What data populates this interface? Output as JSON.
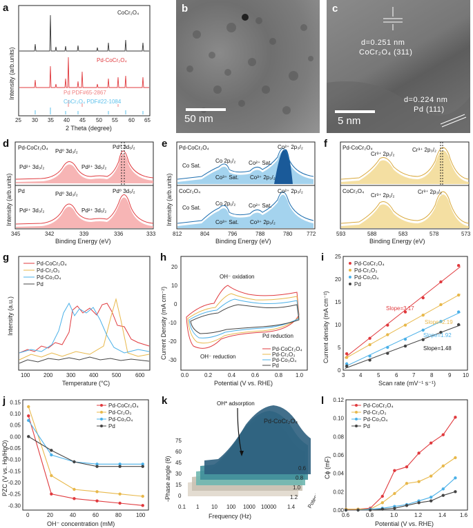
{
  "panels": {
    "a": {
      "label": "a",
      "series": [
        "CoCr₂O₄",
        "Pd-CoCr₂O₄"
      ],
      "refs": [
        "Pd PDF#65-2867",
        "CoCr₂O₄ PDF#22-1084"
      ],
      "xlabel": "2 Theta (degree)",
      "ylabel": "Intensity (arb.units)",
      "xticks": [
        "25",
        "30",
        "35",
        "40",
        "45",
        "50",
        "55",
        "60",
        "65"
      ],
      "colors": [
        "#333333",
        "#e0393d",
        "#f08080",
        "#5bc0eb"
      ]
    },
    "b": {
      "label": "b",
      "scale": "50 nm"
    },
    "c": {
      "label": "c",
      "d1": "d=0.251 nm",
      "plane1": "CoCr₂O₄ (311)",
      "d2": "d=0.224 nm",
      "plane2": "Pd (111)",
      "scale": "5 nm"
    },
    "d": {
      "label": "d",
      "top": "Pd-CoCr₂O₄",
      "bottom": "Pd",
      "peaks": [
        "Pd⁰ 3d₃/₂",
        "Pd²⁺ 3d₃/₂",
        "Pd²⁺ 3d₅/₂",
        "Pd⁰ 3d₅/₂"
      ],
      "xlabel": "Binding Energy (eV)",
      "ylabel": "Intensity (arb.units)",
      "xticks": [
        "345",
        "342",
        "339",
        "336",
        "333"
      ]
    },
    "e": {
      "label": "e",
      "top": "Pd-CoCr₂O₄",
      "bottom": "CoCr₂O₄",
      "peaks": [
        "Co Sat.",
        "Co 2p₁/₂",
        "Co²⁺ Sat.",
        "Co²⁺ 2p₃/₂",
        "Co³⁺ Sat.",
        "Co³⁺ 2p₃/₂"
      ],
      "xlabel": "Binding Energy (eV)",
      "xticks": [
        "812",
        "804",
        "796",
        "788",
        "780",
        "772"
      ]
    },
    "f": {
      "label": "f",
      "top": "Pd-CoCr₂O₄",
      "bottom": "CoCr₂O₄",
      "peaks": [
        "Cr³⁺ 2p₁/₂",
        "Cr³⁺ 2p₃/₂"
      ],
      "xlabel": "Binding Energy (eV)",
      "xticks": [
        "593",
        "588",
        "583",
        "578",
        "573"
      ]
    },
    "g": {
      "label": "g",
      "series": [
        "Pd-CoCr₂O₄",
        "Pd-Cr₂O₃",
        "Pd-Co₃O₄",
        "Pd"
      ],
      "xlabel": "Temperature (°C)",
      "ylabel": "Intensity (a.u.)",
      "xticks": [
        "100",
        "200",
        "300",
        "400",
        "500",
        "600"
      ]
    },
    "h": {
      "label": "h",
      "series": [
        "Pd-CoCr₂O₄",
        "Pd-Cr₂O₃",
        "Pd-Co₃O₄",
        "Pd"
      ],
      "notes": [
        "OH⁻ oxidation",
        "Pd reduction",
        "OH⁻ reduction"
      ],
      "xlabel": "Potential (V vs. RHE)",
      "ylabel": "Current Density (mA cm⁻²)",
      "xticks": [
        "0.0",
        "0.2",
        "0.4",
        "0.6",
        "0.8",
        "1.0"
      ],
      "yticks": [
        "20",
        "10",
        "0",
        "-10",
        "-20",
        "-30"
      ]
    },
    "i": {
      "label": "i",
      "series": [
        "Pd-CoCr₂O₄",
        "Pd-Cr₂O₃",
        "Pd-Co₃O₄",
        "Pd"
      ],
      "slopes": [
        "Slope=3.17",
        "Slope=2.19",
        "Slope=1.92",
        "Slope=1.48"
      ],
      "xlabel": "Scan rate (mV⁻¹ s⁻¹)",
      "ylabel": "Current density (mA cm⁻²)",
      "xticks": [
        "3",
        "4",
        "5",
        "6",
        "7",
        "8",
        "9",
        "10"
      ],
      "yticks": [
        "0",
        "5",
        "10",
        "15",
        "20",
        "25"
      ]
    },
    "j": {
      "label": "j",
      "series": [
        "Pd-CoCr₂O₄",
        "Pd-Cr₂O₃",
        "Pd-Co₃O₄",
        "Pd"
      ],
      "xlabel": "OH⁻ concentration (mM)",
      "ylabel": "PZC (V vs. Hg/HgO)",
      "xticks": [
        "0",
        "20",
        "40",
        "60",
        "80",
        "100"
      ],
      "yticks": [
        "0.15",
        "0.10",
        "0.05",
        "0.00",
        "-0.05",
        "-0.10",
        "-0.15",
        "-0.20",
        "-0.25",
        "-0.30"
      ]
    },
    "k": {
      "label": "k",
      "title": "Pd-CoCr₂O₄",
      "note": "OH* adsorption",
      "xlabel": "Frequency (Hz)",
      "ylabel": "-Phase angle (θ)",
      "zlabel": "Potential (V vs. RHE)",
      "xticks": [
        "0.1",
        "1",
        "10",
        "100",
        "1000",
        "10000"
      ],
      "yticks": [
        "0",
        "15",
        "30",
        "45",
        "60",
        "75"
      ],
      "zticks": [
        "0.6",
        "0.8",
        "1.0",
        "1.2",
        "1.4"
      ]
    },
    "l": {
      "label": "l",
      "series": [
        "Pd-CoCr₂O₄",
        "Pd-Cr₂O₃",
        "Pd-Co₃O₄",
        "Pd"
      ],
      "xlabel": "Potential (V vs. RHE)",
      "ylabel": "Cϕ (mF)",
      "xticks": [
        "0.6",
        "0.8",
        "1.0",
        "1.2",
        "1.4",
        "1.6"
      ],
      "yticks": [
        "0.00",
        "0.02",
        "0.04",
        "0.06",
        "0.08",
        "0.10",
        "0.12"
      ]
    }
  },
  "chart_data": [
    {
      "panel": "i",
      "type": "scatter",
      "title": "",
      "xlabel": "Scan rate (mV⁻¹ s⁻¹)",
      "ylabel": "Current density (mA cm⁻²)",
      "xlim": [
        3,
        10
      ],
      "ylim": [
        0,
        25
      ],
      "x": [
        3.2,
        4.5,
        5.5,
        6.5,
        7.5,
        8.5,
        9.5
      ],
      "series": [
        {
          "name": "Pd-CoCr₂O₄",
          "slope": 3.17,
          "color": "#e0393d",
          "values": [
            3.6,
            7.0,
            9.9,
            12.8,
            15.9,
            19.4,
            23.0
          ]
        },
        {
          "name": "Pd-Cr₂O₃",
          "slope": 2.19,
          "color": "#e8b84a",
          "values": [
            2.8,
            5.6,
            7.8,
            9.9,
            12.1,
            14.4,
            16.5
          ]
        },
        {
          "name": "Pd-Co₃O₄",
          "slope": 1.92,
          "color": "#4ab0e8",
          "values": [
            1.4,
            3.1,
            5.0,
            6.8,
            8.8,
            10.7,
            12.8
          ]
        },
        {
          "name": "Pd",
          "slope": 1.48,
          "color": "#444444",
          "values": [
            0.9,
            2.2,
            3.7,
            5.3,
            6.7,
            8.3,
            10.0
          ]
        }
      ]
    },
    {
      "panel": "j",
      "type": "line",
      "title": "",
      "xlabel": "OH⁻ concentration (mM)",
      "ylabel": "PZC (V vs. Hg/HgO)",
      "xlim": [
        -5,
        105
      ],
      "ylim": [
        -0.32,
        0.16
      ],
      "x": [
        0,
        20,
        40,
        60,
        80,
        100
      ],
      "series": [
        {
          "name": "Pd-CoCr₂O₄",
          "color": "#e0393d",
          "values": [
            0.09,
            -0.25,
            -0.27,
            -0.28,
            -0.29,
            -0.3
          ]
        },
        {
          "name": "Pd-Cr₂O₃",
          "color": "#e8b84a",
          "values": [
            0.13,
            -0.17,
            -0.23,
            -0.24,
            -0.25,
            -0.26
          ]
        },
        {
          "name": "Pd-Co₃O₄",
          "color": "#4ab0e8",
          "values": [
            0.07,
            -0.08,
            -0.11,
            -0.12,
            -0.12,
            -0.12
          ]
        },
        {
          "name": "Pd",
          "color": "#444444",
          "values": [
            0.0,
            -0.06,
            -0.11,
            -0.13,
            -0.13,
            -0.13
          ]
        }
      ]
    },
    {
      "panel": "l",
      "type": "line",
      "title": "",
      "xlabel": "Potential (V vs. RHE)",
      "ylabel": "Cϕ (mF)",
      "xlim": [
        0.6,
        1.6
      ],
      "ylim": [
        0,
        0.12
      ],
      "x": [
        0.6,
        0.7,
        0.8,
        0.9,
        1.0,
        1.1,
        1.2,
        1.3,
        1.4,
        1.5
      ],
      "series": [
        {
          "name": "Pd-CoCr₂O₄",
          "color": "#e0393d",
          "values": [
            0.001,
            0.001,
            0.002,
            0.015,
            0.043,
            0.047,
            0.062,
            0.073,
            0.082,
            0.101
          ]
        },
        {
          "name": "Pd-Cr₂O₃",
          "color": "#e8b84a",
          "values": [
            0.001,
            0.001,
            0.001,
            0.008,
            0.018,
            0.029,
            0.031,
            0.037,
            0.048,
            0.057
          ]
        },
        {
          "name": "Pd-Co₃O₄",
          "color": "#4ab0e8",
          "values": [
            0.0,
            0.0,
            0.001,
            0.002,
            0.004,
            0.006,
            0.01,
            0.014,
            0.023,
            0.035
          ]
        },
        {
          "name": "Pd",
          "color": "#444444",
          "values": [
            0.0,
            0.0,
            0.0,
            0.001,
            0.002,
            0.005,
            0.008,
            0.01,
            0.016,
            0.02
          ]
        }
      ]
    }
  ]
}
